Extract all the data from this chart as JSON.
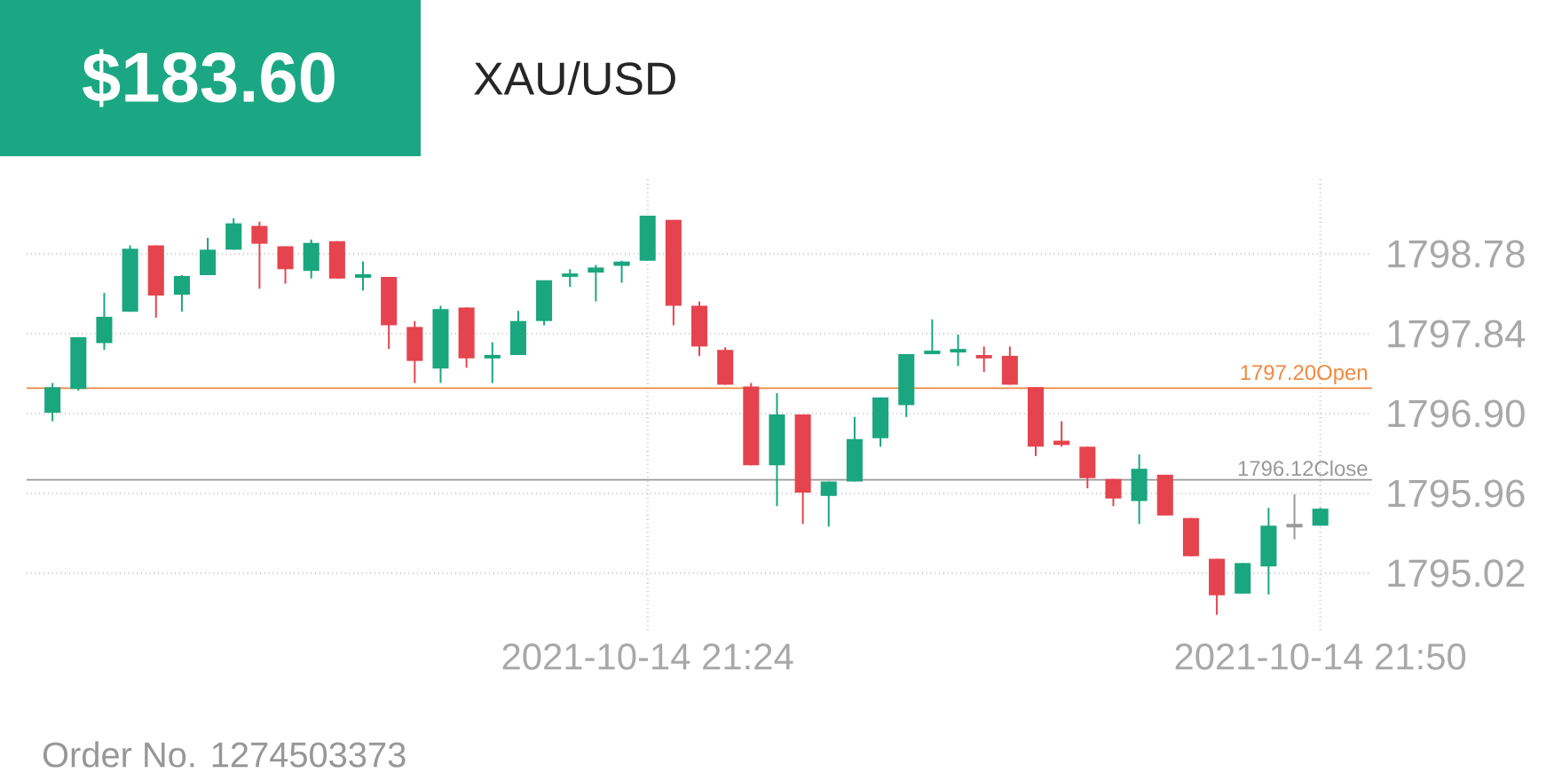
{
  "chart_data": {
    "type": "candlestick",
    "title": "$183.60",
    "subtitle": "XAU/USD",
    "annotations": [
      "Order No. 1274503373"
    ],
    "x": [
      "2021-10-14T21:01",
      "2021-10-14T21:02",
      "2021-10-14T21:03",
      "2021-10-14T21:04",
      "2021-10-14T21:05",
      "2021-10-14T21:06",
      "2021-10-14T21:07",
      "2021-10-14T21:08",
      "2021-10-14T21:09",
      "2021-10-14T21:10",
      "2021-10-14T21:11",
      "2021-10-14T21:12",
      "2021-10-14T21:13",
      "2021-10-14T21:14",
      "2021-10-14T21:15",
      "2021-10-14T21:16",
      "2021-10-14T21:17",
      "2021-10-14T21:18",
      "2021-10-14T21:19",
      "2021-10-14T21:20",
      "2021-10-14T21:21",
      "2021-10-14T21:22",
      "2021-10-14T21:23",
      "2021-10-14T21:24",
      "2021-10-14T21:25",
      "2021-10-14T21:26",
      "2021-10-14T21:27",
      "2021-10-14T21:28",
      "2021-10-14T21:29",
      "2021-10-14T21:30",
      "2021-10-14T21:31",
      "2021-10-14T21:32",
      "2021-10-14T21:33",
      "2021-10-14T21:34",
      "2021-10-14T21:35",
      "2021-10-14T21:36",
      "2021-10-14T21:37",
      "2021-10-14T21:38",
      "2021-10-14T21:39",
      "2021-10-14T21:40",
      "2021-10-14T21:41",
      "2021-10-14T21:42",
      "2021-10-14T21:43",
      "2021-10-14T21:44",
      "2021-10-14T21:45",
      "2021-10-14T21:46",
      "2021-10-14T21:47",
      "2021-10-14T21:48",
      "2021-10-14T21:49",
      "2021-10-14T21:50"
    ],
    "ohlc": [
      [
        1796.91,
        1797.26,
        1796.81,
        1797.21
      ],
      [
        1797.19,
        1797.8,
        1797.17,
        1797.8
      ],
      [
        1797.73,
        1798.32,
        1797.65,
        1798.04
      ],
      [
        1798.1,
        1798.88,
        1798.1,
        1798.84
      ],
      [
        1798.88,
        1798.88,
        1798.03,
        1798.29
      ],
      [
        1798.3,
        1798.53,
        1798.1,
        1798.52
      ],
      [
        1798.53,
        1798.97,
        1798.53,
        1798.83
      ],
      [
        1798.83,
        1799.2,
        1798.83,
        1799.14
      ],
      [
        1799.11,
        1799.16,
        1798.37,
        1798.9
      ],
      [
        1798.87,
        1798.87,
        1798.43,
        1798.6
      ],
      [
        1798.58,
        1798.95,
        1798.49,
        1798.91
      ],
      [
        1798.93,
        1798.93,
        1798.49,
        1798.49
      ],
      [
        1798.52,
        1798.69,
        1798.35,
        1798.53
      ],
      [
        1798.51,
        1798.51,
        1797.66,
        1797.94
      ],
      [
        1797.92,
        1797.99,
        1797.26,
        1797.52
      ],
      [
        1797.43,
        1798.17,
        1797.26,
        1798.13
      ],
      [
        1798.15,
        1798.15,
        1797.44,
        1797.55
      ],
      [
        1797.57,
        1797.74,
        1797.26,
        1797.58
      ],
      [
        1797.59,
        1798.11,
        1797.59,
        1797.99
      ],
      [
        1797.99,
        1798.47,
        1797.94,
        1798.47
      ],
      [
        1798.51,
        1798.6,
        1798.39,
        1798.55
      ],
      [
        1798.56,
        1798.65,
        1798.22,
        1798.62
      ],
      [
        1798.66,
        1798.7,
        1798.44,
        1798.69
      ],
      [
        1798.7,
        1799.23,
        1798.7,
        1799.23
      ],
      [
        1799.18,
        1799.18,
        1797.94,
        1798.17
      ],
      [
        1798.17,
        1798.22,
        1797.58,
        1797.69
      ],
      [
        1797.65,
        1797.68,
        1797.24,
        1797.24
      ],
      [
        1797.22,
        1797.26,
        1796.29,
        1796.29
      ],
      [
        1796.29,
        1797.14,
        1795.81,
        1796.89
      ],
      [
        1796.89,
        1796.89,
        1795.6,
        1795.97
      ],
      [
        1795.93,
        1796.1,
        1795.57,
        1796.1
      ],
      [
        1796.1,
        1796.86,
        1796.1,
        1796.6
      ],
      [
        1796.61,
        1797.09,
        1796.51,
        1797.09
      ],
      [
        1797.0,
        1797.6,
        1796.86,
        1797.6
      ],
      [
        1797.62,
        1798.01,
        1797.6,
        1797.63
      ],
      [
        1797.64,
        1797.83,
        1797.46,
        1797.65
      ],
      [
        1797.59,
        1797.69,
        1797.39,
        1797.55
      ],
      [
        1797.58,
        1797.69,
        1797.24,
        1797.24
      ],
      [
        1797.21,
        1797.21,
        1796.4,
        1796.51
      ],
      [
        1796.56,
        1796.81,
        1796.51,
        1796.53
      ],
      [
        1796.51,
        1796.51,
        1796.02,
        1796.14
      ],
      [
        1796.13,
        1796.13,
        1795.81,
        1795.9
      ],
      [
        1795.87,
        1796.42,
        1795.6,
        1796.25
      ],
      [
        1796.18,
        1796.18,
        1795.7,
        1795.7
      ],
      [
        1795.67,
        1795.67,
        1795.22,
        1795.22
      ],
      [
        1795.19,
        1795.19,
        1794.53,
        1794.76
      ],
      [
        1794.78,
        1795.14,
        1794.78,
        1795.14
      ],
      [
        1795.1,
        1795.79,
        1794.77,
        1795.58
      ],
      [
        1795.58,
        1795.95,
        1795.42,
        1795.58
      ],
      [
        1795.58,
        1795.79,
        1795.58,
        1795.78
      ]
    ],
    "colors": [
      "#1aa67f",
      "#1aa67f",
      "#1aa67f",
      "#1aa67f",
      "#e5444e",
      "#1aa67f",
      "#1aa67f",
      "#1aa67f",
      "#e5444e",
      "#e5444e",
      "#1aa67f",
      "#e5444e",
      "#1aa67f",
      "#e5444e",
      "#e5444e",
      "#1aa67f",
      "#e5444e",
      "#1aa67f",
      "#1aa67f",
      "#1aa67f",
      "#1aa67f",
      "#1aa67f",
      "#1aa67f",
      "#1aa67f",
      "#e5444e",
      "#e5444e",
      "#e5444e",
      "#e5444e",
      "#1aa67f",
      "#e5444e",
      "#1aa67f",
      "#1aa67f",
      "#1aa67f",
      "#1aa67f",
      "#1aa67f",
      "#1aa67f",
      "#e5444e",
      "#e5444e",
      "#e5444e",
      "#e5444e",
      "#e5444e",
      "#e5444e",
      "#1aa67f",
      "#e5444e",
      "#e5444e",
      "#e5444e",
      "#1aa67f",
      "#1aa67f",
      "#999999",
      "#1aa67f"
    ],
    "xlim": [
      "2021-10-14T21:00",
      "2021-10-14T21:52"
    ],
    "ylim": [
      1794.35,
      1799.68
    ],
    "xticks": [
      {
        "value": "2021-10-14T21:24",
        "label": "2021-10-14 21:24"
      },
      {
        "value": "2021-10-14T21:50",
        "label": "2021-10-14 21:50"
      }
    ],
    "yticks": [
      1795.02,
      1795.96,
      {
        "value": 1796.9,
        "label": "1796.90"
      },
      1797.84,
      1798.78
    ],
    "grid": true,
    "ref_lines": [
      {
        "axis": "y",
        "value": 1797.2,
        "label": "1797.20Open",
        "color": "#f0883e"
      },
      {
        "axis": "y",
        "value": 1796.12,
        "label": "1796.12Close",
        "color": "#999999"
      }
    ]
  }
}
